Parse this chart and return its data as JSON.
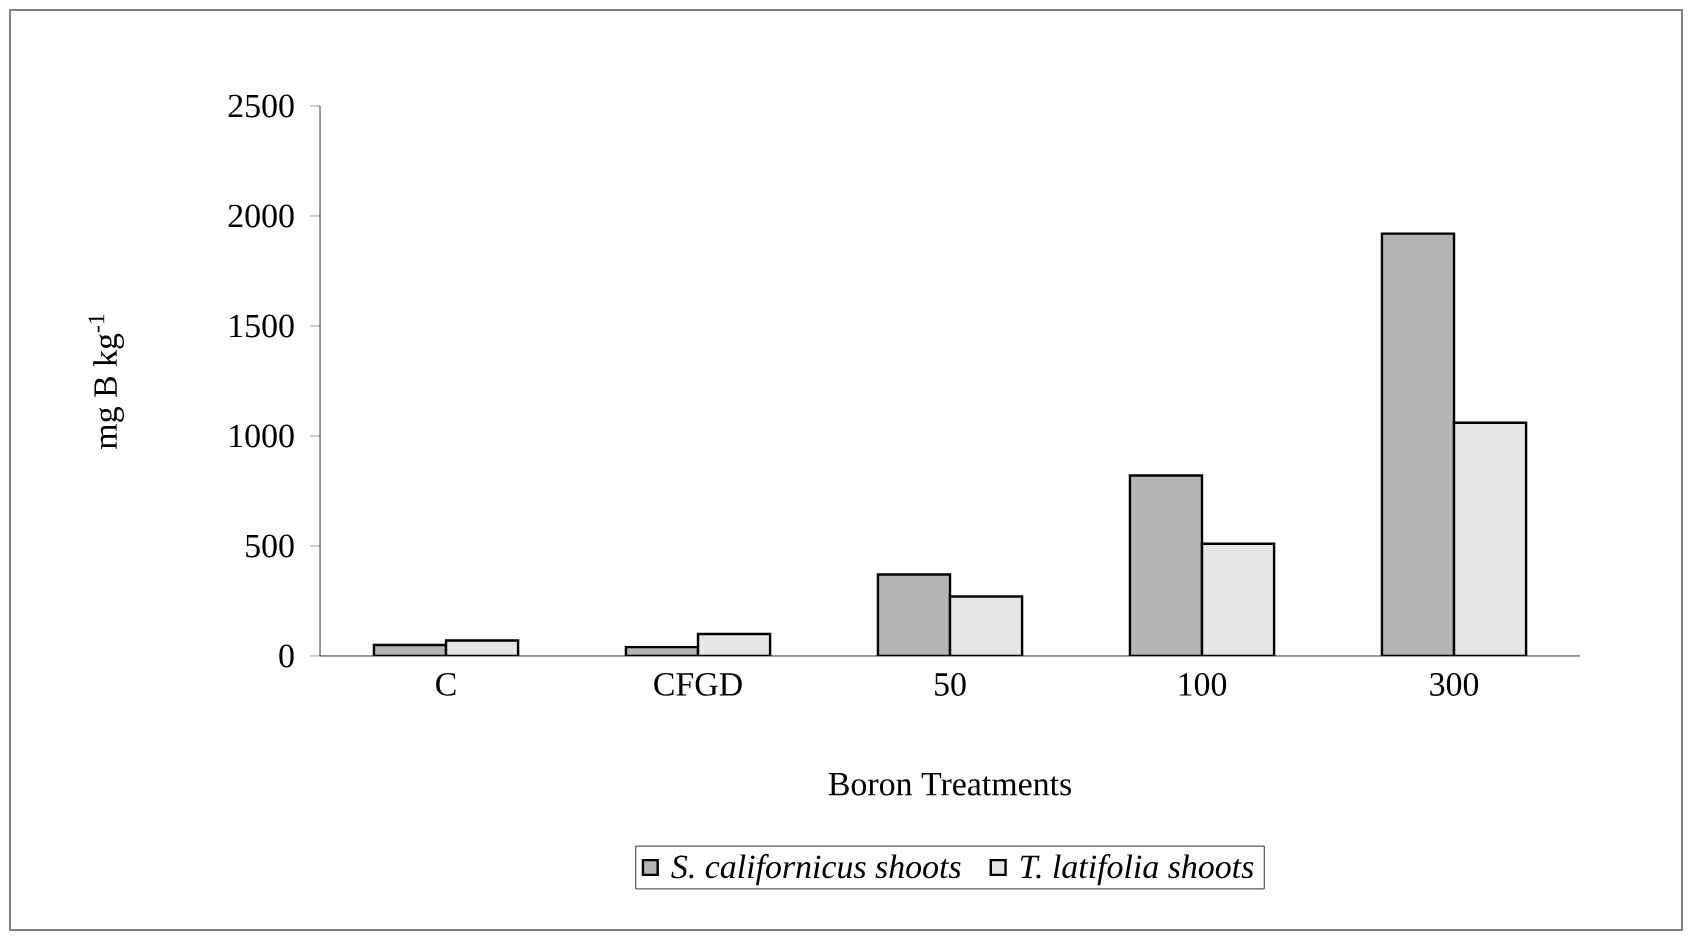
{
  "chart_data": {
    "type": "bar",
    "xlabel": "Boron Treatments",
    "ylabel": "mg B kg$^{-1}$",
    "categories": [
      "C",
      "CFGD",
      "50",
      "100",
      "300"
    ],
    "series": [
      {
        "name": "S. californicus shoots",
        "color": "#b4b4b4",
        "values": [
          50,
          40,
          370,
          820,
          1920
        ]
      },
      {
        "name": "T. latifolia shoots",
        "color": "#e6e6e6",
        "values": [
          70,
          100,
          270,
          510,
          1060
        ]
      }
    ],
    "ylim": [
      0,
      2500
    ],
    "yticks": [
      0,
      500,
      1000,
      1500,
      2000,
      2500
    ],
    "grid": false,
    "legend": "bottom"
  }
}
